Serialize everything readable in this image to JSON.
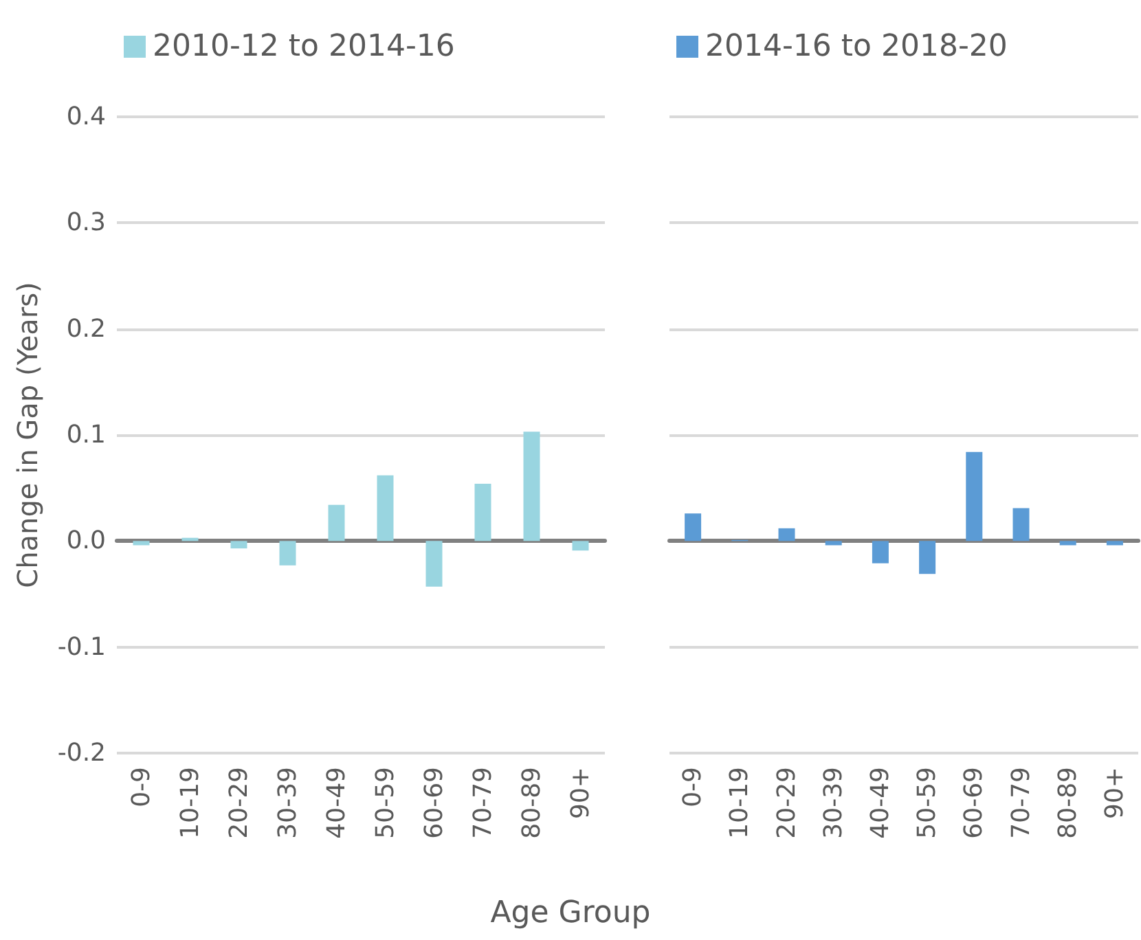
{
  "chart_data": [
    {
      "type": "bar",
      "categories": [
        "0-9",
        "10-19",
        "20-29",
        "30-39",
        "40-49",
        "50-59",
        "60-69",
        "70-79",
        "80-89",
        "90+"
      ],
      "series": [
        {
          "name": "2010-12 to 2014-16",
          "color": "#99d5e0",
          "values": [
            -0.004,
            0.003,
            -0.007,
            -0.023,
            0.034,
            0.062,
            -0.043,
            0.054,
            0.103,
            -0.009
          ]
        }
      ],
      "ylabel": "Change in Gap (Years)",
      "xlabel": "Age Group",
      "ylim": [
        -0.2,
        0.4
      ],
      "yticks": [
        -0.2,
        -0.1,
        {
          "value": 0,
          "label": "0.0"
        },
        0.1,
        0.2,
        0.3,
        0.4
      ],
      "grid": "y",
      "legend": "top"
    },
    {
      "type": "bar",
      "categories": [
        "0-9",
        "10-19",
        "20-29",
        "30-39",
        "40-49",
        "50-59",
        "60-69",
        "70-79",
        "80-89",
        "90+"
      ],
      "series": [
        {
          "name": "2014-16 to 2018-20",
          "color": "#5b9bd5",
          "values": [
            0.026,
            0.001,
            0.012,
            -0.004,
            -0.021,
            -0.031,
            0.084,
            0.031,
            -0.004,
            -0.004
          ]
        }
      ],
      "ylim": [
        -0.2,
        0.4
      ],
      "yticks": [
        -0.2,
        -0.1,
        0,
        0.1,
        0.2,
        0.3,
        0.4
      ],
      "grid": "y",
      "legend": "top",
      "tick_labels": "x"
    }
  ]
}
